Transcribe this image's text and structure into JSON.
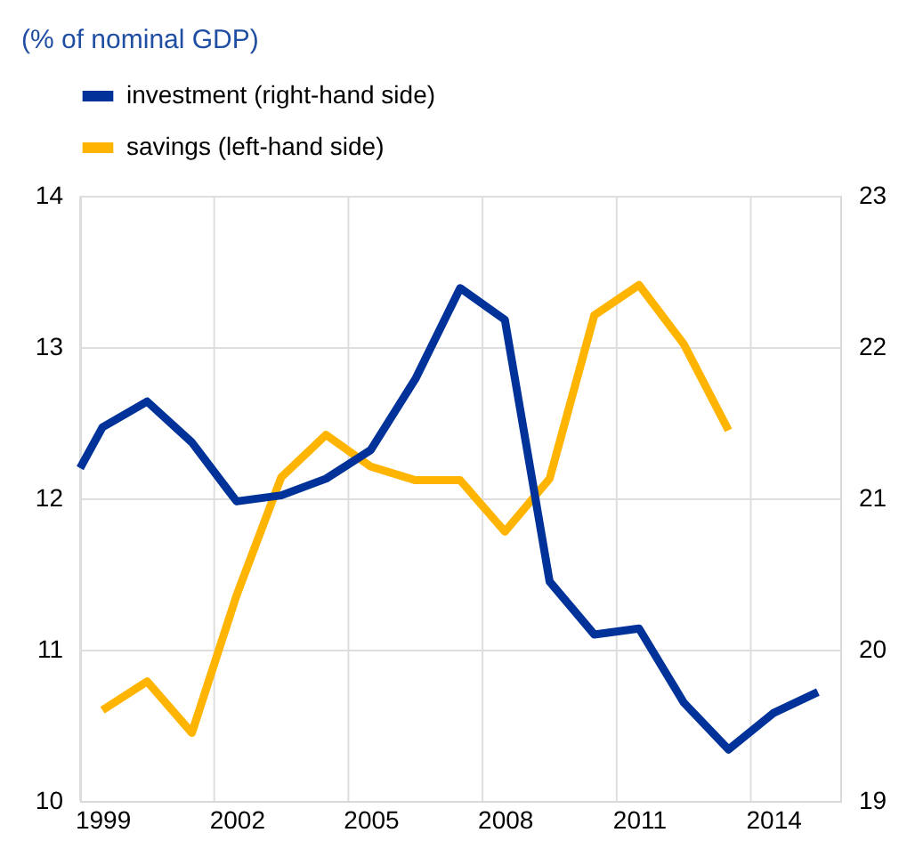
{
  "chart_data": {
    "type": "line",
    "title": "(% of nominal GDP)",
    "x": [
      1999,
      2000,
      2001,
      2002,
      2003,
      2004,
      2005,
      2006,
      2007,
      2008,
      2009,
      2010,
      2011,
      2012,
      2013
    ],
    "series": [
      {
        "name": "investment (right-hand side)",
        "color": "#003299",
        "axis": "y2",
        "x": [
          1998.5,
          1999,
          2000,
          2001,
          2002,
          2003,
          2004,
          2005,
          2006,
          2007,
          2008,
          2009,
          2010,
          2011,
          2012,
          2013,
          2014,
          2015
        ],
        "values": [
          21.2,
          21.47,
          21.64,
          21.37,
          20.98,
          21.02,
          21.13,
          21.32,
          21.79,
          22.39,
          22.18,
          20.45,
          20.1,
          20.14,
          19.65,
          19.34,
          19.58,
          19.72
        ]
      },
      {
        "name": "savings (left-hand side)",
        "color": "#ffb400",
        "values": [
          10.6,
          10.79,
          10.45,
          11.36,
          12.14,
          12.42,
          12.21,
          12.12,
          12.12,
          11.78,
          12.13,
          13.21,
          13.41,
          13.02,
          12.45
        ]
      }
    ],
    "xlim": [
      1998.5,
      2015.5
    ],
    "xticks": [
      {
        "value": 1998.5,
        "label": null
      },
      1999,
      {
        "value": 2001.5,
        "label": null
      },
      2002,
      {
        "value": 2004.5,
        "label": null
      },
      2005,
      {
        "value": 2007.5,
        "label": null
      },
      2008,
      {
        "value": 2010.5,
        "label": null
      },
      2011,
      {
        "value": 2013.5,
        "label": null
      },
      2014
    ],
    "ylim": [
      10,
      14
    ],
    "yticks": [
      10,
      11,
      12,
      13,
      14
    ],
    "y2lim": [
      19,
      23
    ],
    "y2ticks": [
      19,
      20,
      21,
      22,
      23
    ],
    "grid": true,
    "legend": "top left",
    "line_style": "solid"
  }
}
